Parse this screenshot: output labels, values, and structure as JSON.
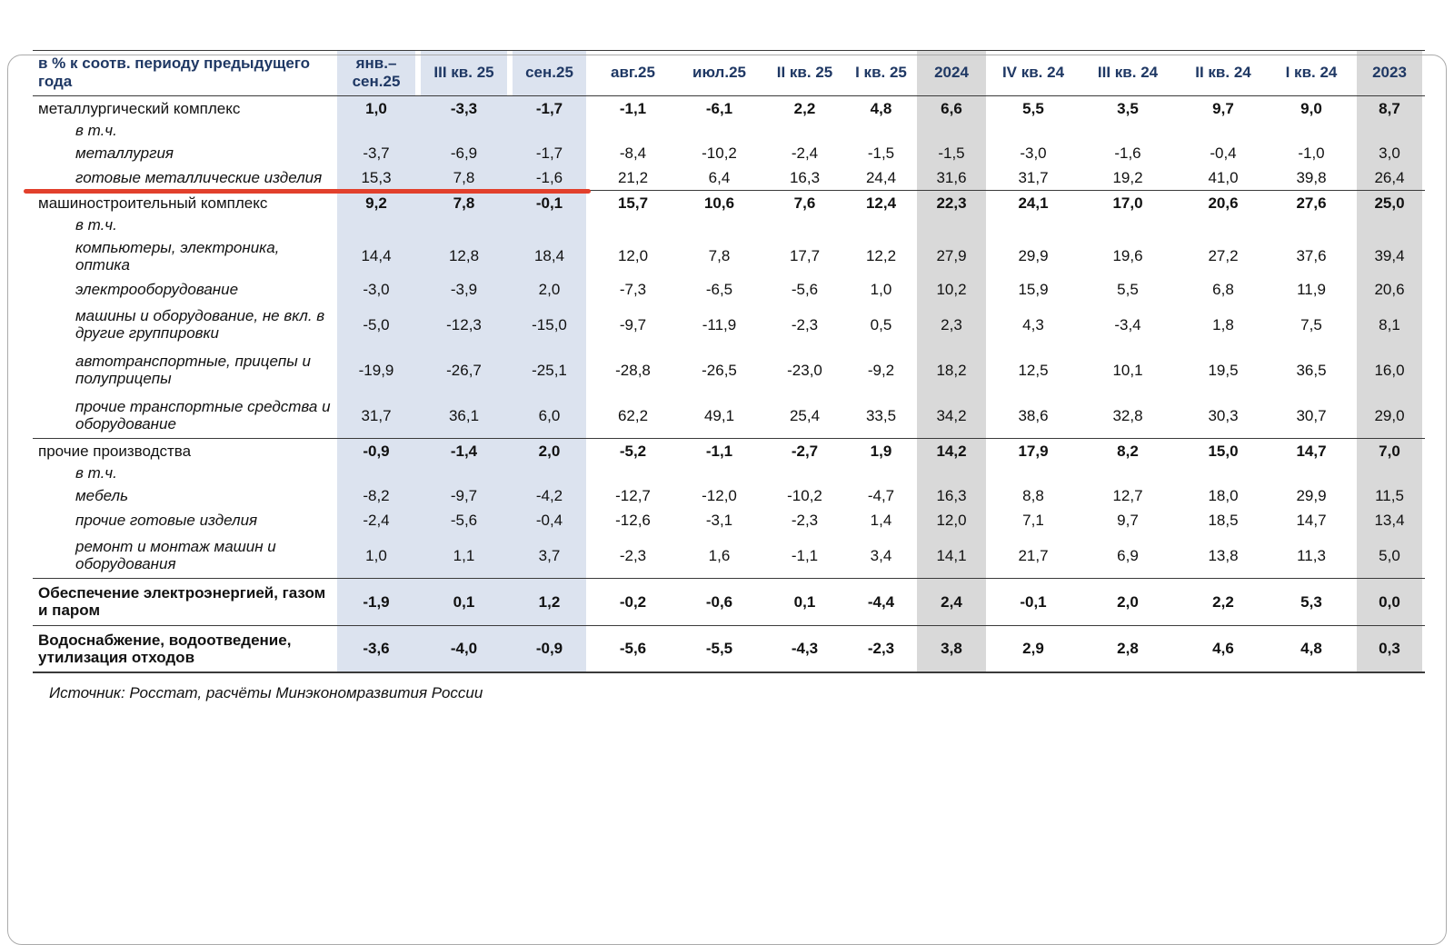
{
  "colors": {
    "header_text": "#1f3864",
    "blue_column_bg": "#dce3ef",
    "gray_column_bg": "#d9d9d9",
    "highlight_line": "#e2402c"
  },
  "page": {
    "source_note": "Источник: Росстат, расчёты Минэкономразвития России"
  },
  "chart_data": {
    "type": "table",
    "title": "в % к соотв. периоду предыдущего года",
    "legend_position": "none",
    "highlight": {
      "row": "готовые металлические изделия",
      "color": "#e2402c",
      "spans_columns": [
        "янв.–сен.25",
        "III кв. 25",
        "сен.25"
      ]
    },
    "columns": [
      {
        "label": "янв.–\nсен.25",
        "band": "blue"
      },
      {
        "label": "III кв. 25",
        "band": "blue"
      },
      {
        "label": "сен.25",
        "band": "blue"
      },
      {
        "label": "авг.25",
        "band": "none"
      },
      {
        "label": "июл.25",
        "band": "none"
      },
      {
        "label": "II кв. 25",
        "band": "none"
      },
      {
        "label": "I кв. 25",
        "band": "none"
      },
      {
        "label": "2024",
        "band": "gray"
      },
      {
        "label": "IV кв. 24",
        "band": "none"
      },
      {
        "label": "III кв. 24",
        "band": "none"
      },
      {
        "label": "II кв. 24",
        "band": "none"
      },
      {
        "label": "I кв. 24",
        "band": "none"
      },
      {
        "label": "2023",
        "band": "gray"
      }
    ],
    "rows": [
      {
        "label": "металлургический комплекс",
        "style": "section",
        "values": [
          "1,0",
          "-3,3",
          "-1,7",
          "-1,1",
          "-6,1",
          "2,2",
          "4,8",
          "6,6",
          "5,5",
          "3,5",
          "9,7",
          "9,0",
          "8,7"
        ]
      },
      {
        "label": "в т.ч.",
        "style": "subnote",
        "values": []
      },
      {
        "label": "металлургия",
        "style": "sub",
        "values": [
          "-3,7",
          "-6,9",
          "-1,7",
          "-8,4",
          "-10,2",
          "-2,4",
          "-1,5",
          "-1,5",
          "-3,0",
          "-1,6",
          "-0,4",
          "-1,0",
          "3,0"
        ]
      },
      {
        "label": "готовые металлические изделия",
        "style": "sub",
        "underline": true,
        "values": [
          "15,3",
          "7,8",
          "-1,6",
          "21,2",
          "6,4",
          "16,3",
          "24,4",
          "31,6",
          "31,7",
          "19,2",
          "41,0",
          "39,8",
          "26,4"
        ]
      },
      {
        "label": "машиностроительный комплекс",
        "style": "section",
        "separator": true,
        "values": [
          "9,2",
          "7,8",
          "-0,1",
          "15,7",
          "10,6",
          "7,6",
          "12,4",
          "22,3",
          "24,1",
          "17,0",
          "20,6",
          "27,6",
          "25,0"
        ]
      },
      {
        "label": "в т.ч.",
        "style": "subnote",
        "values": []
      },
      {
        "label": "компьютеры, электроника, оптика",
        "style": "sub",
        "values": [
          "14,4",
          "12,8",
          "18,4",
          "12,0",
          "7,8",
          "17,7",
          "12,2",
          "27,9",
          "29,9",
          "19,6",
          "27,2",
          "37,6",
          "39,4"
        ]
      },
      {
        "label": "электрооборудование",
        "style": "sub",
        "values": [
          "-3,0",
          "-3,9",
          "2,0",
          "-7,3",
          "-6,5",
          "-5,6",
          "1,0",
          "10,2",
          "15,9",
          "5,5",
          "6,8",
          "11,9",
          "20,6"
        ]
      },
      {
        "label": "машины и оборудование, не вкл. в другие группировки",
        "style": "sub",
        "twoline": true,
        "values": [
          "-5,0",
          "-12,3",
          "-15,0",
          "-9,7",
          "-11,9",
          "-2,3",
          "0,5",
          "2,3",
          "4,3",
          "-3,4",
          "1,8",
          "7,5",
          "8,1"
        ]
      },
      {
        "label": "автотранспортные, прицепы и полуприцепы",
        "style": "sub",
        "twoline": true,
        "values": [
          "-19,9",
          "-26,7",
          "-25,1",
          "-28,8",
          "-26,5",
          "-23,0",
          "-9,2",
          "18,2",
          "12,5",
          "10,1",
          "19,5",
          "36,5",
          "16,0"
        ]
      },
      {
        "label": "прочие транспортные средства и оборудование",
        "style": "sub",
        "twoline": true,
        "values": [
          "31,7",
          "36,1",
          "6,0",
          "62,2",
          "49,1",
          "25,4",
          "33,5",
          "34,2",
          "38,6",
          "32,8",
          "30,3",
          "30,7",
          "29,0"
        ]
      },
      {
        "label": "прочие производства",
        "style": "section",
        "separator": true,
        "values": [
          "-0,9",
          "-1,4",
          "2,0",
          "-5,2",
          "-1,1",
          "-2,7",
          "1,9",
          "14,2",
          "17,9",
          "8,2",
          "15,0",
          "14,7",
          "7,0"
        ]
      },
      {
        "label": "в т.ч.",
        "style": "subnote",
        "values": []
      },
      {
        "label": "мебель",
        "style": "sub",
        "values": [
          "-8,2",
          "-9,7",
          "-4,2",
          "-12,7",
          "-12,0",
          "-10,2",
          "-4,7",
          "16,3",
          "8,8",
          "12,7",
          "18,0",
          "29,9",
          "11,5"
        ]
      },
      {
        "label": "прочие готовые изделия",
        "style": "sub",
        "values": [
          "-2,4",
          "-5,6",
          "-0,4",
          "-12,6",
          "-3,1",
          "-2,3",
          "1,4",
          "12,0",
          "7,1",
          "9,7",
          "18,5",
          "14,7",
          "13,4"
        ]
      },
      {
        "label": "ремонт и монтаж машин и оборудования",
        "style": "sub",
        "twoline": true,
        "values": [
          "1,0",
          "1,1",
          "3,7",
          "-2,3",
          "1,6",
          "-1,1",
          "3,4",
          "14,1",
          "21,7",
          "6,9",
          "13,8",
          "11,3",
          "5,0"
        ]
      },
      {
        "label": "Обеспечение электроэнергией, газом и паром",
        "style": "section_bold",
        "separator": true,
        "twoline": true,
        "values": [
          "-1,9",
          "0,1",
          "1,2",
          "-0,2",
          "-0,6",
          "0,1",
          "-4,4",
          "2,4",
          "-0,1",
          "2,0",
          "2,2",
          "5,3",
          "0,0"
        ]
      },
      {
        "label": "Водоснабжение, водоотведение, утилизация отходов",
        "style": "section_bold",
        "separator": true,
        "last": true,
        "twoline": true,
        "values": [
          "-3,6",
          "-4,0",
          "-0,9",
          "-5,6",
          "-5,5",
          "-4,3",
          "-2,3",
          "3,8",
          "2,9",
          "2,8",
          "4,6",
          "4,8",
          "0,3"
        ]
      }
    ]
  }
}
